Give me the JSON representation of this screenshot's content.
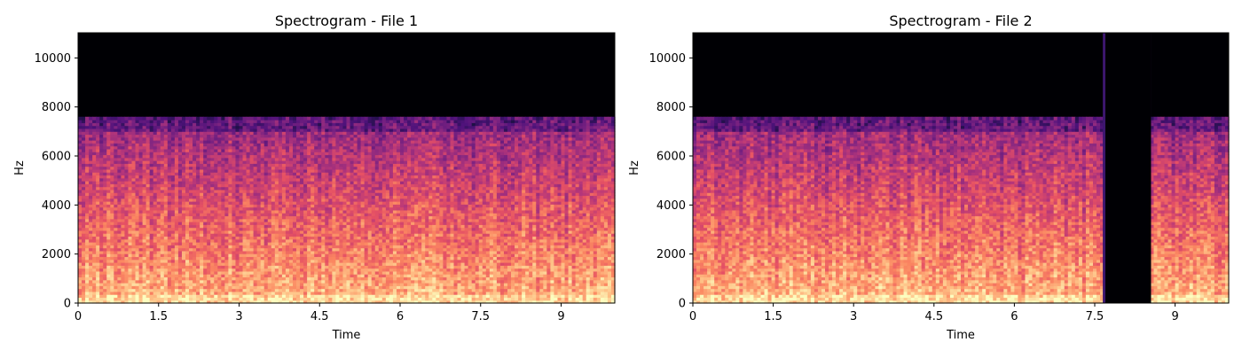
{
  "chart_data": [
    {
      "type": "heatmap",
      "title": "Spectrogram - File 1",
      "xlabel": "Time",
      "ylabel": "Hz",
      "xlim": [
        0,
        10.0
      ],
      "ylim": [
        0,
        11025
      ],
      "xticks": [
        0,
        1.5,
        3,
        4.5,
        6,
        7.5,
        9
      ],
      "xtick_labels": [
        "0",
        "1.5",
        "3",
        "4.5",
        "6",
        "7.5",
        "9"
      ],
      "yticks": [
        0,
        2000,
        4000,
        6000,
        8000,
        10000
      ],
      "ytick_labels": [
        "0",
        "2000",
        "4000",
        "6000",
        "8000",
        "10000"
      ],
      "colormap": "magma",
      "spectral_cutoff_hz": 7600,
      "silent_intervals_s": [],
      "grid": false
    },
    {
      "type": "heatmap",
      "title": "Spectrogram - File 2",
      "xlabel": "Time",
      "ylabel": "Hz",
      "xlim": [
        0,
        10.0
      ],
      "ylim": [
        0,
        11025
      ],
      "xticks": [
        0,
        1.5,
        3,
        4.5,
        6,
        7.5,
        9
      ],
      "xtick_labels": [
        "0",
        "1.5",
        "3",
        "4.5",
        "6",
        "7.5",
        "9"
      ],
      "yticks": [
        0,
        2000,
        4000,
        6000,
        8000,
        10000
      ],
      "ytick_labels": [
        "0",
        "2000",
        "4000",
        "6000",
        "8000",
        "10000"
      ],
      "colormap": "magma",
      "spectral_cutoff_hz": 7600,
      "silent_intervals_s": [
        [
          7.7,
          8.55
        ]
      ],
      "grid": false
    }
  ]
}
